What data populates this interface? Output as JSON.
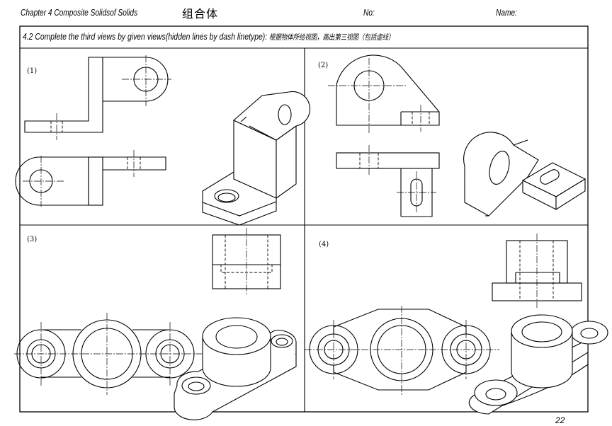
{
  "header": {
    "chapter": "Chapter 4 Composite Solidsof Solids",
    "chapter_cn": "组合体",
    "no_label": "No:",
    "name_label": "Name:"
  },
  "task": {
    "title": "4.2 Complete the third views by given views(hidden lines by dash linetype):",
    "title_cn": "根据物体所给视图，画出第三视图（包括虚线）"
  },
  "panels": [
    "(1)",
    "(2)",
    "(3)",
    "(4)"
  ],
  "page_number": "22"
}
